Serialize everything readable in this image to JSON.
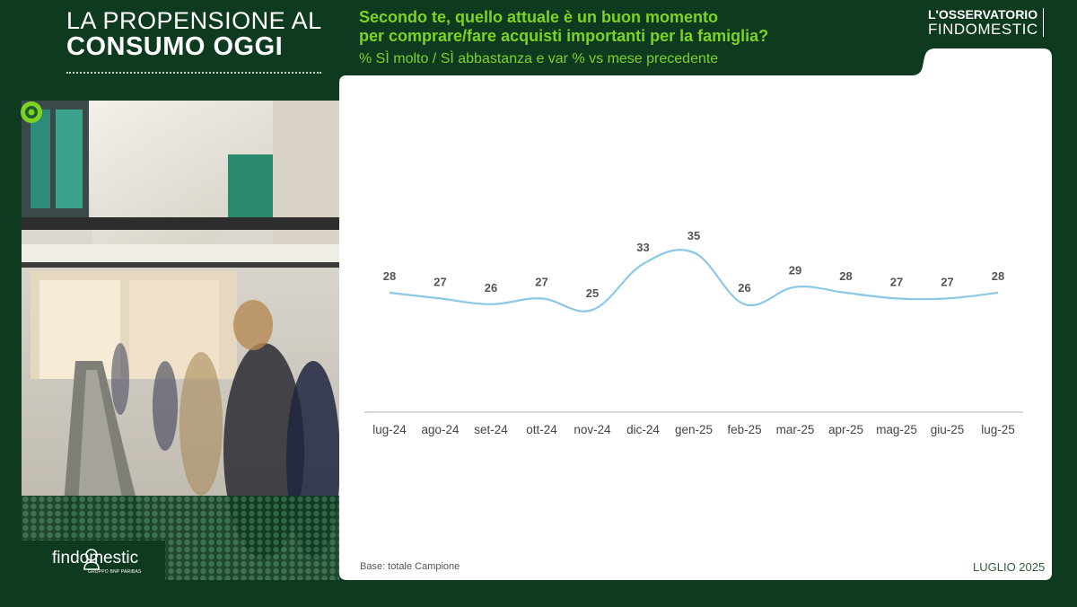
{
  "header": {
    "title_line1": "LA PROPENSIONE AL",
    "title_line2": "CONSUMO OGGI",
    "question_line1": "Secondo te, quello attuale è un buon momento",
    "question_line2": "per comprare/fare acquisti importanti per la famiglia?",
    "subtitle": "% SÌ molto / SÌ abbastanza e var % vs mese precedente"
  },
  "brand": {
    "line1": "L'OSSERVATORIO",
    "line2": "FINDOMESTIC"
  },
  "logo": {
    "name": "findomestic",
    "tagline": "GRUPPO BNP PARIBAS"
  },
  "footer": {
    "base": "Base: totale Campione",
    "date": "LUGLIO 2025"
  },
  "colors": {
    "background": "#0e3a20",
    "accent_green": "#7ed321",
    "line": "#8cc8e6",
    "panel": "#ffffff"
  },
  "chart_data": {
    "type": "line",
    "categories": [
      "lug-24",
      "ago-24",
      "set-24",
      "ott-24",
      "nov-24",
      "dic-24",
      "gen-25",
      "feb-25",
      "mar-25",
      "apr-25",
      "mag-25",
      "giu-25",
      "lug-25"
    ],
    "series": [
      {
        "values": [
          28,
          27,
          26,
          27,
          25,
          33,
          35,
          26,
          29,
          28,
          27,
          27,
          28
        ]
      }
    ],
    "data_labels": true,
    "grid": false,
    "legend": "none"
  }
}
